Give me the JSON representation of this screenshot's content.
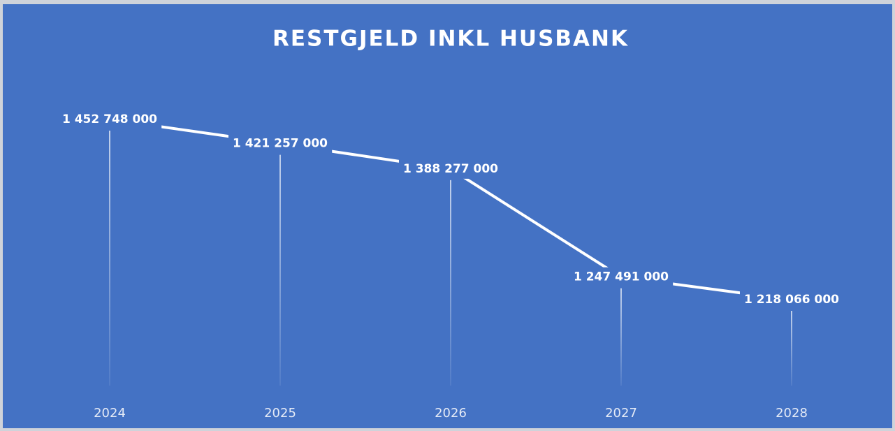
{
  "chart_data": {
    "type": "line",
    "title": "RESTGJELD INKL HUSBANK",
    "categories": [
      "2024",
      "2025",
      "2026",
      "2027",
      "2028"
    ],
    "values": [
      1452748000,
      1421257000,
      1388277000,
      1247491000,
      1218066000
    ],
    "value_labels": [
      "1 452 748 000",
      "1 421 257 000",
      "1 388 277 000",
      "1 247 491 000",
      "1 218 066 000"
    ],
    "color": "#ffffff"
  }
}
